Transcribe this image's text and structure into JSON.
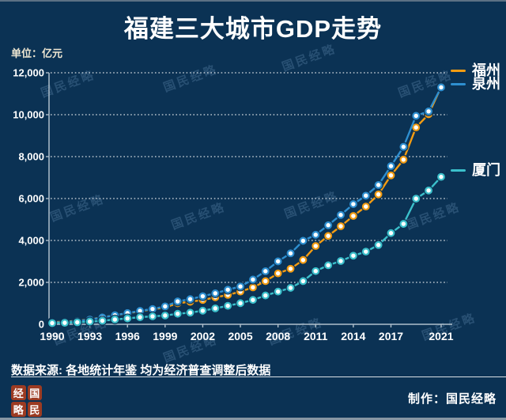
{
  "page": {
    "title": "福建三大城市GDP走势",
    "unit_label": "单位：亿元",
    "source_note": "数据来源: 各地统计年鉴  均为经济普查调整后数据",
    "credit_label": "制作：国民经略",
    "watermark_text": "国民经略",
    "seal_chars": [
      "经",
      "国",
      "略",
      "民"
    ]
  },
  "colors": {
    "background": "#0b3254",
    "fuzhou": "#f39c12",
    "quanzhou": "#2e8fd0",
    "xiamen": "#3bc0cb",
    "grid": "#ffffff",
    "axis": "#b0bfcb",
    "seal": "#9c3b22"
  },
  "legend": [
    {
      "label": "福州",
      "series": "fuzhou"
    },
    {
      "label": "泉州",
      "series": "quanzhou"
    },
    {
      "label": "厦门",
      "series": "xiamen"
    }
  ],
  "chart_data": {
    "type": "line",
    "title": "福建三大城市GDP走势",
    "ylabel": "亿元",
    "ylim": [
      0,
      12000
    ],
    "y_ticks": [
      0,
      2000,
      4000,
      6000,
      8000,
      10000,
      12000
    ],
    "grid": "horizontal-dotted",
    "legend_position": "right",
    "x": [
      1990,
      1991,
      1992,
      1993,
      1994,
      1995,
      1996,
      1997,
      1998,
      1999,
      2000,
      2001,
      2002,
      2003,
      2004,
      2005,
      2006,
      2007,
      2008,
      2009,
      2010,
      2011,
      2012,
      2013,
      2014,
      2015,
      2016,
      2017,
      2018,
      2019,
      2020,
      2021
    ],
    "x_tick_years": [
      1990,
      1993,
      1996,
      1999,
      2002,
      2005,
      2008,
      2011,
      2014,
      2017,
      2021
    ],
    "series": [
      {
        "name": "福州",
        "key": "fuzhou",
        "values": [
          102,
          125,
          166,
          235,
          333,
          435,
          525,
          617,
          712,
          805,
          1003,
          1074,
          1160,
          1288,
          1400,
          1560,
          1760,
          2060,
          2430,
          2650,
          3068,
          3735,
          4218,
          4679,
          5169,
          5618,
          6198,
          7104,
          7857,
          9392,
          10020,
          11324
        ]
      },
      {
        "name": "泉州",
        "key": "quanzhou",
        "values": [
          81,
          106,
          151,
          223,
          323,
          433,
          535,
          640,
          730,
          854,
          1092,
          1200,
          1339,
          1480,
          1650,
          1803,
          2134,
          2534,
          3002,
          3386,
          3983,
          4271,
          4727,
          5218,
          5733,
          6138,
          6647,
          7548,
          8468,
          9947,
          10159,
          11304
        ]
      },
      {
        "name": "厦门",
        "key": "xiamen",
        "values": [
          57,
          71,
          94,
          130,
          170,
          230,
          280,
          338,
          380,
          420,
          502,
          556,
          648,
          760,
          883,
          1007,
          1162,
          1375,
          1560,
          1737,
          2060,
          2539,
          2815,
          3018,
          3273,
          3466,
          3784,
          4351,
          4791,
          5995,
          6384,
          7034
        ]
      }
    ]
  }
}
